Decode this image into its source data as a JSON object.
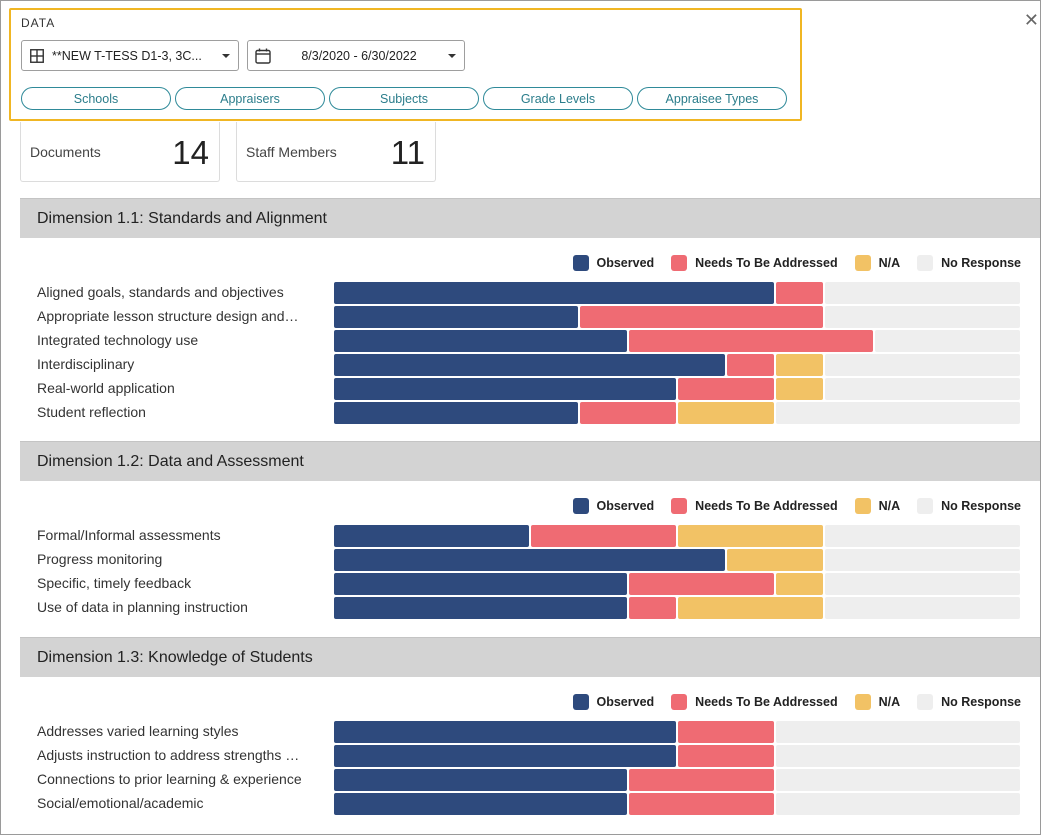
{
  "filter": {
    "title": "DATA",
    "data_select": "**NEW T-TESS D1-3, 3C...",
    "date_range": "8/3/2020 - 6/30/2022",
    "pills": [
      "Schools",
      "Appraisers",
      "Subjects",
      "Grade Levels",
      "Appraisee Types"
    ]
  },
  "stats": [
    {
      "label": "Documents",
      "value": "14"
    },
    {
      "label": "Staff Members",
      "value": "11"
    }
  ],
  "legend": [
    {
      "label": "Observed",
      "color": "#2e4a7d"
    },
    {
      "label": "Needs To Be Addressed",
      "color": "#ef6b73"
    },
    {
      "label": "N/A",
      "color": "#f2c265"
    },
    {
      "label": "No Response",
      "color": "#eeeeee"
    }
  ],
  "chart_data": {
    "type": "bar",
    "stacked": true,
    "orientation": "horizontal",
    "unit_scale": 14,
    "series_names": [
      "Observed",
      "Needs To Be Addressed",
      "N/A",
      "No Response"
    ],
    "sections": [
      {
        "title": "Dimension 1.1: Standards and Alignment",
        "rows": [
          {
            "label": "Aligned goals, standards and objectives",
            "values": [
              9,
              1,
              0,
              4
            ]
          },
          {
            "label": "Appropriate lesson structure design and…",
            "values": [
              5,
              5,
              0,
              4
            ]
          },
          {
            "label": "Integrated technology use",
            "values": [
              6,
              5,
              0,
              3
            ]
          },
          {
            "label": "Interdisciplinary",
            "values": [
              8,
              1,
              1,
              4
            ]
          },
          {
            "label": "Real-world application",
            "values": [
              7,
              2,
              1,
              4
            ]
          },
          {
            "label": "Student reflection",
            "values": [
              5,
              2,
              2,
              5
            ]
          }
        ]
      },
      {
        "title": "Dimension 1.2: Data and Assessment",
        "rows": [
          {
            "label": "Formal/Informal assessments",
            "values": [
              4,
              3,
              3,
              4
            ]
          },
          {
            "label": "Progress monitoring",
            "values": [
              8,
              0,
              2,
              4
            ]
          },
          {
            "label": "Specific, timely feedback",
            "values": [
              6,
              3,
              1,
              4
            ]
          },
          {
            "label": "Use of data in planning instruction",
            "values": [
              6,
              1,
              3,
              4
            ]
          }
        ]
      },
      {
        "title": "Dimension 1.3: Knowledge of Students",
        "rows": [
          {
            "label": "Addresses varied learning styles",
            "values": [
              7,
              2,
              0,
              5
            ]
          },
          {
            "label": "Adjusts instruction to address strengths …",
            "values": [
              7,
              2,
              0,
              5
            ]
          },
          {
            "label": "Connections to prior learning & experience",
            "values": [
              6,
              3,
              0,
              5
            ]
          },
          {
            "label": "Social/emotional/academic",
            "values": [
              6,
              3,
              0,
              5
            ]
          }
        ]
      }
    ]
  }
}
